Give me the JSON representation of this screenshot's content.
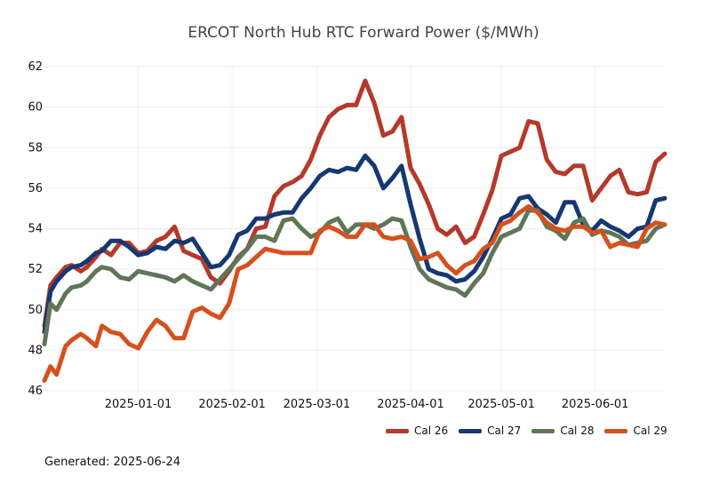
{
  "title": "ERCOT North Hub RTC Forward Power ($/MWh)",
  "footer": "Generated: 2025-06-24",
  "colors": {
    "Cal 26": "#b5392b",
    "Cal 27": "#163872",
    "Cal 28": "#5f7658",
    "Cal 29": "#d4511e"
  },
  "chart_data": {
    "type": "line",
    "title": "ERCOT North Hub RTC Forward Power ($/MWh)",
    "xlabel": "",
    "ylabel": "",
    "xlim": [
      "2024-12-01",
      "2025-06-24"
    ],
    "ylim": [
      46,
      62
    ],
    "yticks": [
      46,
      48,
      50,
      52,
      54,
      56,
      58,
      60,
      62
    ],
    "xticks": [
      "2025-01-01",
      "2025-02-01",
      "2025-03-01",
      "2025-04-01",
      "2025-05-01",
      "2025-06-01"
    ],
    "grid": true,
    "legend": "bottom-right",
    "x": [
      "2024-12-01",
      "2024-12-03",
      "2024-12-05",
      "2024-12-08",
      "2024-12-10",
      "2024-12-13",
      "2024-12-15",
      "2024-12-18",
      "2024-12-20",
      "2024-12-23",
      "2024-12-26",
      "2024-12-29",
      "2025-01-01",
      "2025-01-04",
      "2025-01-07",
      "2025-01-10",
      "2025-01-13",
      "2025-01-16",
      "2025-01-19",
      "2025-01-22",
      "2025-01-25",
      "2025-01-28",
      "2025-01-31",
      "2025-02-03",
      "2025-02-06",
      "2025-02-09",
      "2025-02-12",
      "2025-02-15",
      "2025-02-18",
      "2025-02-21",
      "2025-02-24",
      "2025-02-27",
      "2025-03-02",
      "2025-03-05",
      "2025-03-08",
      "2025-03-11",
      "2025-03-14",
      "2025-03-17",
      "2025-03-20",
      "2025-03-23",
      "2025-03-26",
      "2025-03-29",
      "2025-04-01",
      "2025-04-04",
      "2025-04-07",
      "2025-04-10",
      "2025-04-13",
      "2025-04-16",
      "2025-04-19",
      "2025-04-22",
      "2025-04-25",
      "2025-04-28",
      "2025-05-01",
      "2025-05-04",
      "2025-05-07",
      "2025-05-10",
      "2025-05-13",
      "2025-05-16",
      "2025-05-19",
      "2025-05-22",
      "2025-05-25",
      "2025-05-28",
      "2025-05-31",
      "2025-06-03",
      "2025-06-06",
      "2025-06-09",
      "2025-06-12",
      "2025-06-15",
      "2025-06-18",
      "2025-06-21",
      "2025-06-24"
    ],
    "series": [
      {
        "name": "Cal 26",
        "values": [
          49.2,
          51.2,
          51.6,
          52.1,
          52.2,
          51.9,
          52.1,
          52.6,
          53.0,
          52.7,
          53.3,
          53.3,
          52.8,
          52.9,
          53.4,
          53.6,
          54.1,
          52.9,
          52.7,
          52.5,
          51.6,
          51.3,
          51.9,
          52.6,
          53.0,
          54.0,
          54.1,
          55.6,
          56.1,
          56.3,
          56.6,
          57.4,
          58.6,
          59.5,
          59.9,
          60.1,
          60.1,
          61.3,
          60.2,
          58.6,
          58.8,
          59.5,
          57.0,
          56.2,
          55.2,
          54.0,
          53.7,
          54.1,
          53.3,
          53.6,
          54.7,
          55.9,
          57.6,
          57.8,
          58.0,
          59.3,
          59.2,
          57.4,
          56.8,
          56.7,
          57.1,
          57.1,
          55.4,
          56.0,
          56.6,
          56.9,
          55.8,
          55.7,
          55.8,
          57.3,
          57.7
        ]
      },
      {
        "name": "Cal 27",
        "values": [
          48.9,
          50.9,
          51.4,
          51.9,
          52.1,
          52.2,
          52.4,
          52.8,
          52.9,
          53.4,
          53.4,
          53.1,
          52.7,
          52.8,
          53.1,
          53.0,
          53.4,
          53.3,
          53.5,
          52.8,
          52.1,
          52.2,
          52.7,
          53.7,
          53.9,
          54.5,
          54.5,
          54.7,
          54.8,
          54.8,
          55.5,
          56.0,
          56.6,
          56.9,
          56.8,
          57.0,
          56.9,
          57.6,
          57.1,
          56.0,
          56.5,
          57.1,
          55.2,
          53.5,
          52.0,
          51.8,
          51.7,
          51.4,
          51.5,
          51.9,
          52.6,
          53.5,
          54.5,
          54.7,
          55.5,
          55.6,
          55.0,
          54.7,
          54.3,
          55.3,
          55.3,
          54.2,
          53.9,
          54.4,
          54.1,
          53.9,
          53.6,
          54.0,
          54.1,
          55.4,
          55.5
        ]
      },
      {
        "name": "Cal 28",
        "values": [
          48.3,
          50.3,
          50.0,
          50.8,
          51.1,
          51.2,
          51.4,
          51.9,
          52.1,
          52.0,
          51.6,
          51.5,
          51.9,
          51.8,
          51.7,
          51.6,
          51.4,
          51.7,
          51.4,
          51.2,
          51.0,
          51.5,
          52.0,
          52.5,
          53.0,
          53.6,
          53.6,
          53.4,
          54.4,
          54.5,
          54.0,
          53.6,
          53.8,
          54.3,
          54.5,
          53.8,
          54.2,
          54.2,
          54.0,
          54.2,
          54.5,
          54.4,
          53.1,
          52.0,
          51.5,
          51.3,
          51.1,
          51.0,
          50.7,
          51.3,
          51.8,
          52.8,
          53.6,
          53.8,
          54.0,
          54.9,
          54.9,
          54.1,
          53.9,
          53.5,
          54.3,
          54.5,
          53.7,
          53.9,
          53.8,
          53.6,
          53.2,
          53.3,
          53.4,
          54.0,
          54.2
        ]
      },
      {
        "name": "Cal 29",
        "values": [
          46.5,
          47.2,
          46.8,
          48.2,
          48.5,
          48.8,
          48.6,
          48.2,
          49.2,
          48.9,
          48.8,
          48.3,
          48.1,
          48.9,
          49.5,
          49.2,
          48.6,
          48.6,
          49.9,
          50.1,
          49.8,
          49.6,
          50.3,
          52.0,
          52.2,
          52.6,
          53.0,
          52.9,
          52.8,
          52.8,
          52.8,
          52.8,
          53.9,
          54.1,
          53.9,
          53.6,
          53.6,
          54.2,
          54.2,
          53.6,
          53.5,
          53.6,
          53.4,
          52.5,
          52.6,
          52.8,
          52.2,
          51.8,
          52.2,
          52.4,
          53.0,
          53.3,
          54.2,
          54.4,
          54.8,
          55.1,
          54.8,
          54.3,
          54.0,
          53.9,
          54.1,
          54.1,
          53.8,
          53.9,
          53.1,
          53.3,
          53.2,
          53.1,
          54.0,
          54.3,
          54.2
        ]
      }
    ]
  }
}
